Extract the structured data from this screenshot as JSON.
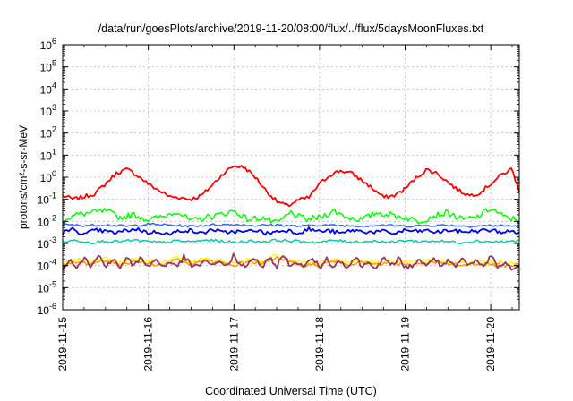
{
  "chart_data": {
    "type": "line",
    "title": "/data/run/goesPlots/archive/2019-11-20/08:00/flux/../flux/5daysMoonFluxes.txt",
    "xlabel": "Coordinated Universal Time (UTC)",
    "ylabel": "protons/cm²-s-sr-MeV",
    "x_range": [
      "2019-11-15T00:00",
      "2019-11-20T08:00"
    ],
    "y_scale": "log",
    "ylim": [
      1e-06,
      1000000.0
    ],
    "grid": true,
    "legend": "none",
    "x_ticks": [
      "2019-11-15",
      "2019-11-16",
      "2019-11-17",
      "2019-11-18",
      "2019-11-19",
      "2019-11-20"
    ],
    "y_ticks": [
      {
        "base": "10",
        "exp": "-6"
      },
      {
        "base": "10",
        "exp": "-5"
      },
      {
        "base": "10",
        "exp": "-4"
      },
      {
        "base": "10",
        "exp": "-3"
      },
      {
        "base": "10",
        "exp": "-2"
      },
      {
        "base": "10",
        "exp": "-1"
      },
      {
        "base": "10",
        "exp": "0"
      },
      {
        "base": "10",
        "exp": "1"
      },
      {
        "base": "10",
        "exp": "2"
      },
      {
        "base": "10",
        "exp": "3"
      },
      {
        "base": "10",
        "exp": "4"
      },
      {
        "base": "10",
        "exp": "5"
      },
      {
        "base": "10",
        "exp": "6"
      }
    ],
    "series": [
      {
        "color": "#ff0000",
        "x_hours": [
          0,
          3,
          6,
          9,
          12,
          15,
          18,
          21,
          24,
          27,
          30,
          33,
          36,
          39,
          42,
          45,
          48,
          51,
          54,
          57,
          60,
          63,
          66,
          69,
          72,
          75,
          78,
          81,
          84,
          87,
          90,
          93,
          96,
          99,
          102,
          105,
          108,
          111,
          114,
          117,
          120,
          123,
          126,
          128
        ],
        "values": [
          0.15,
          0.1,
          0.13,
          0.18,
          0.5,
          1.5,
          2.3,
          1.2,
          0.5,
          0.25,
          0.13,
          0.12,
          0.1,
          0.15,
          0.45,
          1.5,
          3.3,
          2.8,
          1.0,
          0.25,
          0.08,
          0.05,
          0.09,
          0.12,
          0.5,
          1.3,
          2.0,
          1.5,
          0.7,
          0.3,
          0.12,
          0.15,
          0.3,
          0.9,
          2.2,
          1.5,
          0.6,
          0.25,
          0.15,
          0.2,
          0.5,
          1.3,
          2.4,
          0.2
        ]
      },
      {
        "color": "#00ff00",
        "x_hours": [
          0,
          4,
          8,
          12,
          16,
          20,
          24,
          28,
          32,
          36,
          40,
          44,
          48,
          52,
          56,
          60,
          64,
          68,
          72,
          76,
          80,
          84,
          88,
          92,
          96,
          100,
          104,
          108,
          112,
          116,
          120,
          124,
          128
        ],
        "values": [
          0.012,
          0.02,
          0.025,
          0.03,
          0.015,
          0.02,
          0.012,
          0.016,
          0.03,
          0.01,
          0.015,
          0.02,
          0.03,
          0.012,
          0.015,
          0.008,
          0.025,
          0.012,
          0.015,
          0.03,
          0.015,
          0.012,
          0.025,
          0.02,
          0.015,
          0.01,
          0.018,
          0.025,
          0.012,
          0.015,
          0.04,
          0.015,
          0.012
        ]
      },
      {
        "color": "#3366ff",
        "x_hours": [
          0,
          6,
          12,
          18,
          24,
          30,
          36,
          42,
          48,
          54,
          60,
          66,
          72,
          78,
          84,
          90,
          96,
          102,
          108,
          114,
          120,
          126,
          128
        ],
        "values": [
          0.007,
          0.0065,
          0.007,
          0.006,
          0.0075,
          0.0068,
          0.006,
          0.007,
          0.0072,
          0.0065,
          0.007,
          0.006,
          0.0068,
          0.0065,
          0.0062,
          0.0068,
          0.006,
          0.0065,
          0.0067,
          0.006,
          0.0065,
          0.0062,
          0.006
        ]
      },
      {
        "color": "#0000ee",
        "x_hours": [
          0,
          3,
          6,
          9,
          12,
          15,
          18,
          21,
          24,
          27,
          30,
          33,
          36,
          39,
          42,
          45,
          48,
          51,
          54,
          57,
          60,
          63,
          66,
          69,
          72,
          75,
          78,
          81,
          84,
          87,
          90,
          93,
          96,
          99,
          102,
          105,
          108,
          111,
          114,
          117,
          120,
          123,
          126,
          128
        ],
        "values": [
          0.003,
          0.0045,
          0.0025,
          0.004,
          0.0035,
          0.003,
          0.004,
          0.0045,
          0.003,
          0.0035,
          0.0025,
          0.004,
          0.0038,
          0.0028,
          0.0045,
          0.003,
          0.0036,
          0.0032,
          0.0042,
          0.0028,
          0.0035,
          0.004,
          0.003,
          0.0045,
          0.0035,
          0.0038,
          0.0028,
          0.004,
          0.0035,
          0.0033,
          0.0035,
          0.0028,
          0.004,
          0.0035,
          0.0038,
          0.0032,
          0.004,
          0.0034,
          0.0035,
          0.0038,
          0.004,
          0.0033,
          0.0035,
          0.0032
        ]
      },
      {
        "color": "#00ccaa",
        "x_hours": [
          0,
          4,
          8,
          12,
          16,
          20,
          24,
          28,
          32,
          36,
          40,
          44,
          48,
          52,
          56,
          60,
          64,
          68,
          72,
          76,
          80,
          84,
          88,
          92,
          96,
          100,
          104,
          108,
          112,
          116,
          120,
          124,
          128
        ],
        "values": [
          0.0012,
          0.0014,
          0.0011,
          0.0013,
          0.0012,
          0.0014,
          0.0012,
          0.0011,
          0.0013,
          0.0012,
          0.0014,
          0.0013,
          0.0011,
          0.0013,
          0.0012,
          0.0014,
          0.0013,
          0.0012,
          0.0011,
          0.0014,
          0.0012,
          0.0012,
          0.0013,
          0.0011,
          0.0014,
          0.0012,
          0.0013,
          0.0012,
          0.0011,
          0.0013,
          0.0012,
          0.0012,
          0.0013
        ]
      },
      {
        "color": "#ffff00",
        "x_hours": [
          0,
          4,
          8,
          12,
          16,
          20,
          24,
          28,
          32,
          36,
          40,
          44,
          48,
          52,
          56,
          60,
          64,
          68,
          72,
          76,
          80,
          84,
          88,
          92,
          96,
          100,
          104,
          108,
          112,
          116,
          120,
          124,
          128
        ],
        "values": [
          0.00012,
          0.00018,
          0.00015,
          0.00022,
          0.00014,
          0.0002,
          0.00016,
          0.00013,
          0.00025,
          0.00014,
          0.0002,
          0.00016,
          0.00013,
          0.0002,
          0.00015,
          0.0003,
          0.00016,
          0.00014,
          0.00013,
          0.0002,
          0.00015,
          0.00017,
          0.00014,
          0.00016,
          0.00013,
          0.00015,
          0.0002,
          0.00014,
          0.00013,
          0.00015,
          0.00014,
          0.00013,
          0.00014
        ]
      },
      {
        "color": "#ff9900",
        "x_hours": [
          0,
          4,
          8,
          12,
          16,
          20,
          24,
          28,
          32,
          36,
          40,
          44,
          48,
          52,
          56,
          60,
          64,
          68,
          72,
          76,
          80,
          84,
          88,
          92,
          96,
          100,
          104,
          108,
          112,
          116,
          120,
          124,
          128
        ],
        "values": [
          0.0001,
          0.00014,
          0.00012,
          0.00018,
          0.00011,
          0.00016,
          0.00013,
          0.0001,
          0.0002,
          0.00011,
          0.00016,
          0.00013,
          0.0001,
          0.00016,
          0.00012,
          0.00025,
          0.00013,
          0.00011,
          0.0001,
          0.00016,
          0.00012,
          0.00014,
          0.00011,
          0.00013,
          0.0001,
          0.00012,
          0.00016,
          0.00011,
          0.0001,
          0.00012,
          0.00011,
          0.0001,
          0.00011
        ]
      },
      {
        "color": "#993366",
        "x_hours": [
          0,
          2,
          4,
          6,
          8,
          10,
          12,
          14,
          16,
          18,
          20,
          22,
          24,
          26,
          28,
          30,
          32,
          34,
          36,
          38,
          40,
          42,
          44,
          46,
          48,
          50,
          52,
          54,
          56,
          58,
          60,
          62,
          64,
          66,
          68,
          70,
          72,
          74,
          76,
          78,
          80,
          82,
          84,
          86,
          88,
          90,
          92,
          94,
          96,
          98,
          100,
          102,
          104,
          106,
          108,
          110,
          112,
          114,
          116,
          118,
          120,
          122,
          124,
          126,
          128
        ],
        "values": [
          8e-05,
          0.0002,
          9e-05,
          0.00025,
          8e-05,
          0.0003,
          0.0001,
          0.00018,
          8e-05,
          0.00022,
          9e-05,
          0.00028,
          8e-05,
          0.0002,
          9e-05,
          0.00015,
          8e-05,
          0.00025,
          0.0001,
          9e-05,
          0.0002,
          8e-05,
          0.00018,
          9e-05,
          0.0003,
          8e-05,
          0.00012,
          0.00022,
          8e-05,
          0.0002,
          9e-05,
          0.00035,
          8e-05,
          0.00015,
          9e-05,
          0.00022,
          8e-05,
          0.0002,
          9e-05,
          0.00018,
          8e-05,
          0.00025,
          9e-05,
          0.00015,
          8e-05,
          0.0002,
          9e-05,
          0.00022,
          8e-05,
          0.0001,
          0.0002,
          8e-05,
          0.00025,
          9e-05,
          0.00015,
          8e-05,
          0.0002,
          9e-05,
          0.00018,
          8e-05,
          0.0003,
          9e-05,
          0.00012,
          8e-05,
          8e-05
        ]
      }
    ]
  }
}
